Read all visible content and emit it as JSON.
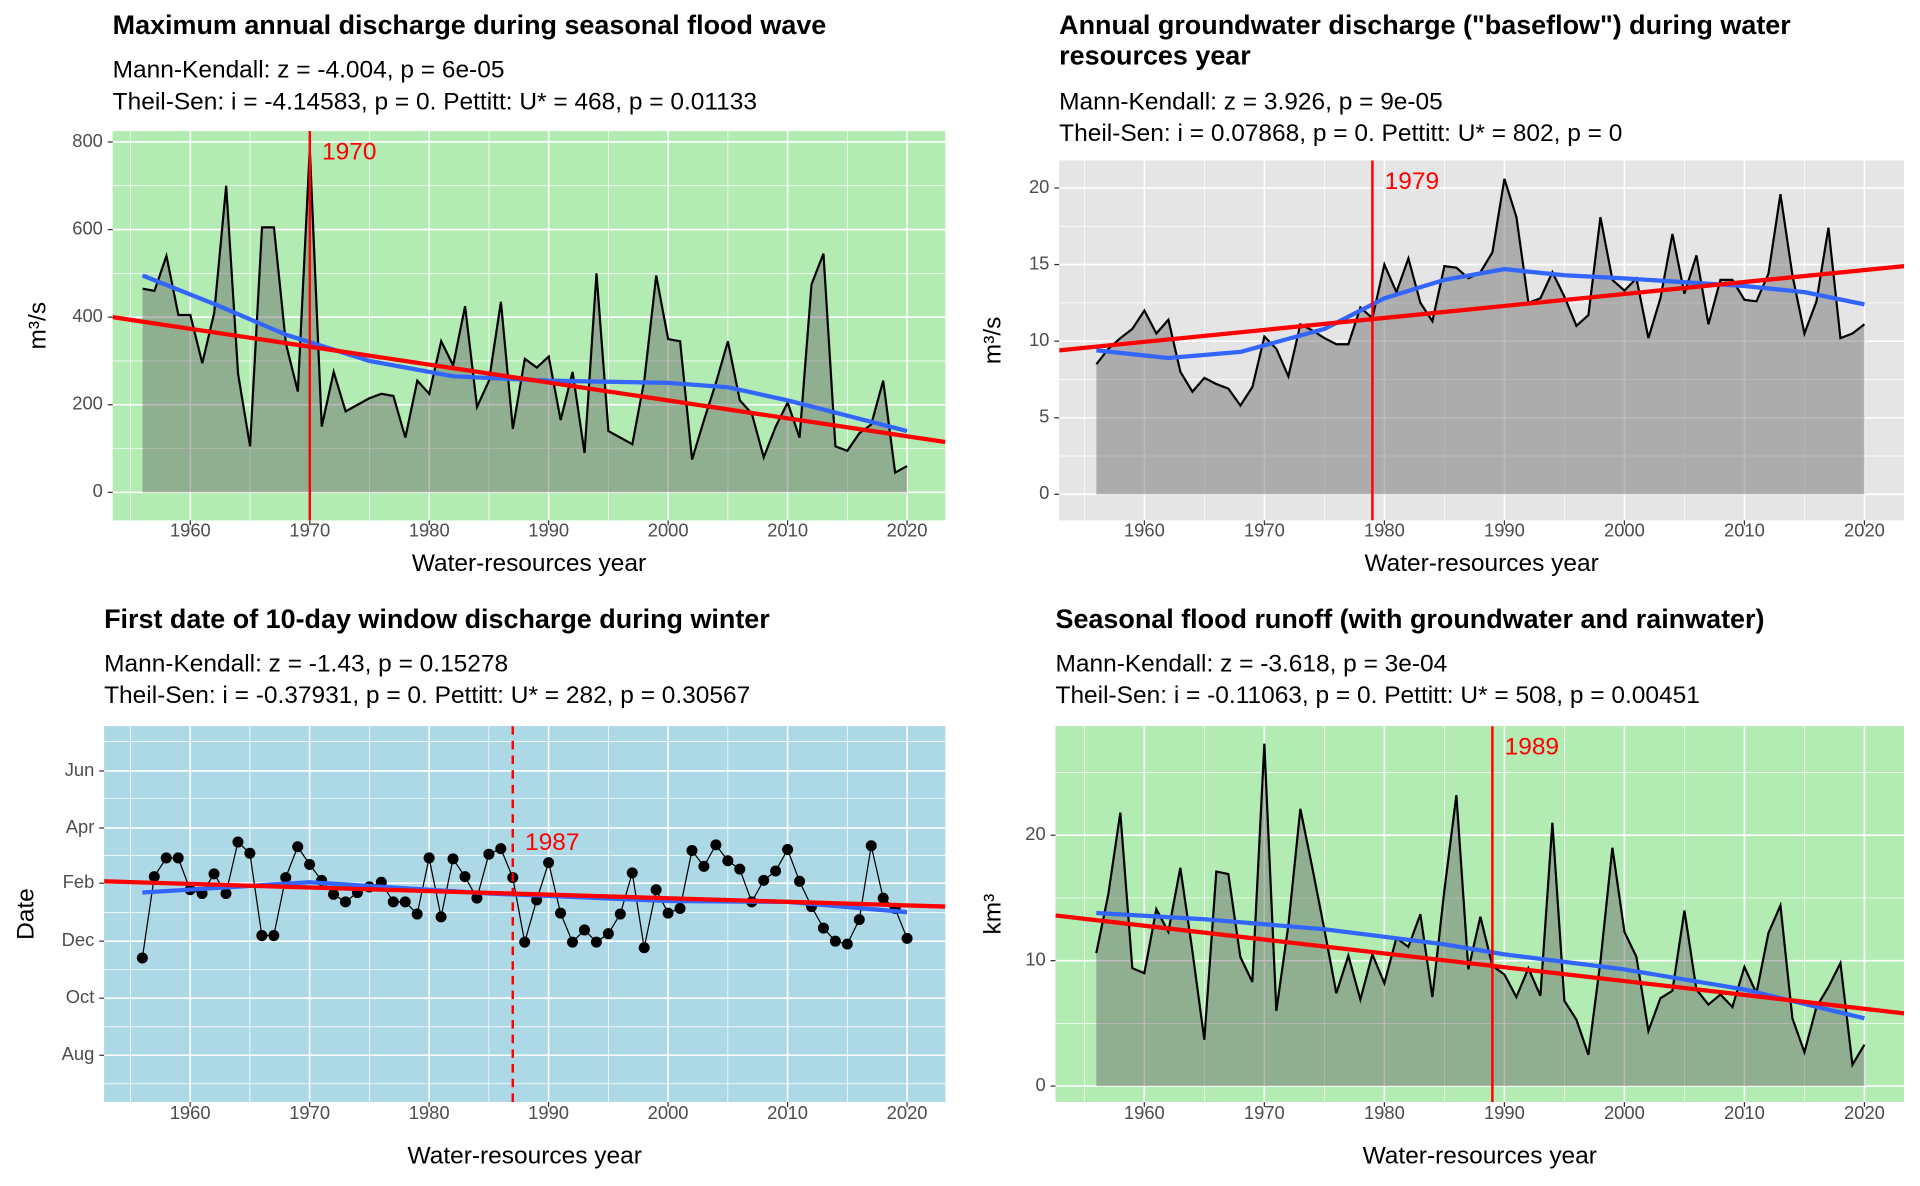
{
  "chart_data": [
    {
      "type": "area",
      "title": [
        "Maximum annual discharge during seasonal flood wave"
      ],
      "subtitle": [
        "Mann-Kendall: z = -4.004, p = 6e-05",
        "Theil-Sen: i = -4.14583, p = 0. Pettitt: U* = 468, p = 0.01133"
      ],
      "xlabel": "Water-resources year",
      "ylabel": "m³/s",
      "background": "#b3ecb3",
      "xlim": [
        1953.5,
        2023.2
      ],
      "xticks": [
        1960,
        1970,
        1980,
        1990,
        2000,
        2010,
        2020
      ],
      "ylim": [
        -64,
        825
      ],
      "yticks": [
        0,
        200,
        400,
        600,
        800
      ],
      "grid": true,
      "color": "#000000",
      "x": [
        1956,
        1957,
        1958,
        1959,
        1960,
        1961,
        1962,
        1963,
        1964,
        1965,
        1966,
        1967,
        1968,
        1969,
        1970,
        1971,
        1972,
        1973,
        1974,
        1975,
        1976,
        1977,
        1978,
        1979,
        1980,
        1981,
        1982,
        1983,
        1984,
        1985,
        1986,
        1987,
        1988,
        1989,
        1990,
        1991,
        1992,
        1993,
        1994,
        1995,
        1996,
        1997,
        1998,
        1999,
        2000,
        2001,
        2002,
        2003,
        2004,
        2005,
        2006,
        2007,
        2008,
        2009,
        2010,
        2011,
        2012,
        2013,
        2014,
        2015,
        2016,
        2017,
        2018,
        2019,
        2020
      ],
      "values": [
        465,
        460,
        540,
        405,
        405,
        295,
        410,
        700,
        270,
        105,
        605,
        605,
        340,
        230,
        785,
        150,
        275,
        185,
        200,
        215,
        225,
        220,
        125,
        255,
        225,
        345,
        290,
        425,
        195,
        255,
        435,
        145,
        305,
        285,
        310,
        165,
        275,
        90,
        500,
        140,
        125,
        110,
        255,
        495,
        350,
        345,
        75,
        165,
        250,
        345,
        210,
        180,
        80,
        150,
        205,
        125,
        475,
        545,
        105,
        95,
        135,
        155,
        255,
        45,
        60
      ],
      "trend": {
        "color": "#ff0000",
        "x": [
          1953.5,
          2023.2
        ],
        "values": [
          400,
          115
        ]
      },
      "smooth": {
        "color": "#3366ff",
        "x": [
          1956,
          1962,
          1968,
          1975,
          1982,
          1990,
          2000,
          2005,
          2010,
          2015,
          2020
        ],
        "values": [
          495,
          430,
          360,
          300,
          265,
          255,
          250,
          240,
          210,
          175,
          140
        ]
      },
      "changepoint": 1970,
      "changepoint_style": "solid"
    },
    {
      "type": "area",
      "title": [
        "Annual groundwater discharge (\"baseflow\") during water",
        "resources year"
      ],
      "subtitle": [
        "Mann-Kendall: z = 3.926, p = 9e-05",
        "Theil-Sen: i = 0.07868, p = 0. Pettitt: U* = 802, p = 0"
      ],
      "xlabel": "Water-resources year",
      "ylabel": "m³/s",
      "background": "#e5e5e5",
      "xlim": [
        1952.9,
        2023.3
      ],
      "xticks": [
        1960,
        1970,
        1980,
        1990,
        2000,
        2010,
        2020
      ],
      "ylim": [
        -1.7,
        21.8
      ],
      "yticks": [
        0,
        5,
        10,
        15,
        20
      ],
      "grid": true,
      "color": "#000000",
      "x": [
        1956,
        1957,
        1958,
        1959,
        1960,
        1961,
        1962,
        1963,
        1964,
        1965,
        1966,
        1967,
        1968,
        1969,
        1970,
        1971,
        1972,
        1973,
        1974,
        1975,
        1976,
        1977,
        1978,
        1979,
        1980,
        1981,
        1982,
        1983,
        1984,
        1985,
        1986,
        1987,
        1988,
        1989,
        1990,
        1991,
        1992,
        1993,
        1994,
        1995,
        1996,
        1997,
        1998,
        1999,
        2000,
        2001,
        2002,
        2003,
        2004,
        2005,
        2006,
        2007,
        2008,
        2009,
        2010,
        2011,
        2012,
        2013,
        2014,
        2015,
        2016,
        2017,
        2018,
        2019,
        2020
      ],
      "values": [
        8.5,
        9.5,
        10.2,
        10.8,
        12,
        10.5,
        11.4,
        8,
        6.7,
        7.6,
        7.2,
        6.9,
        5.8,
        7,
        10.3,
        9.5,
        7.7,
        11.1,
        10.7,
        10.2,
        9.8,
        9.8,
        12.2,
        11.5,
        15,
        13.2,
        15.4,
        12.5,
        11.3,
        14.9,
        14.8,
        14.1,
        14.5,
        15.8,
        20.6,
        18.1,
        12.5,
        12.8,
        14.5,
        12.9,
        11,
        11.7,
        18.1,
        14,
        13.3,
        14.1,
        10.2,
        12.8,
        17,
        13.1,
        15.6,
        11.1,
        14,
        14,
        12.7,
        12.6,
        14.4,
        19.6,
        14.3,
        10.5,
        12.6,
        17.4,
        10.2,
        10.5,
        11.1
      ],
      "trend": {
        "color": "#ff0000",
        "x": [
          1952.9,
          2023.3
        ],
        "values": [
          9.4,
          14.9
        ]
      },
      "smooth": {
        "color": "#3366ff",
        "x": [
          1956,
          1962,
          1968,
          1975,
          1980,
          1985,
          1990,
          1995,
          2000,
          2010,
          2015,
          2020
        ],
        "values": [
          9.4,
          8.9,
          9.3,
          10.8,
          12.8,
          14,
          14.7,
          14.3,
          14.1,
          13.6,
          13.2,
          12.4
        ]
      },
      "changepoint": 1979,
      "changepoint_style": "solid"
    },
    {
      "type": "line",
      "markers": true,
      "title": [
        "First date of 10-day window discharge during winter"
      ],
      "subtitle": [
        "Mann-Kendall: z = -1.43, p = 0.15278",
        "Theil-Sen: i = -0.37931, p = 0. Pettitt: U* = 282, p = 0.30567"
      ],
      "xlabel": "Water-resources year",
      "ylabel": "Date",
      "background": "#add8e6",
      "xlim": [
        1952.8,
        2023.2
      ],
      "xticks": [
        1960,
        1970,
        1980,
        1990,
        2000,
        2010,
        2020
      ],
      "ylim": [
        -50,
        352
      ],
      "yticks": [
        {
          "value": 0,
          "label": "Aug"
        },
        {
          "value": 61,
          "label": "Oct"
        },
        {
          "value": 122,
          "label": "Dec"
        },
        {
          "value": 184,
          "label": "Feb"
        },
        {
          "value": 243,
          "label": "Apr"
        },
        {
          "value": 304,
          "label": "Jun"
        }
      ],
      "grid": true,
      "color": "#000000",
      "x": [
        1956,
        1957,
        1958,
        1959,
        1960,
        1961,
        1962,
        1963,
        1964,
        1965,
        1966,
        1967,
        1968,
        1969,
        1970,
        1971,
        1972,
        1973,
        1974,
        1975,
        1976,
        1977,
        1978,
        1979,
        1980,
        1981,
        1982,
        1983,
        1984,
        1985,
        1986,
        1987,
        1988,
        1989,
        1990,
        1991,
        1992,
        1993,
        1994,
        1995,
        1996,
        1997,
        1998,
        1999,
        2000,
        2001,
        2002,
        2003,
        2004,
        2005,
        2006,
        2007,
        2008,
        2009,
        2010,
        2011,
        2012,
        2013,
        2014,
        2015,
        2016,
        2017,
        2018,
        2019,
        2020
      ],
      "values": [
        104,
        191,
        211,
        211,
        177,
        173,
        194,
        173,
        228,
        216,
        128,
        128,
        190,
        223,
        204,
        187,
        172,
        164,
        174,
        180,
        185,
        164,
        164,
        151,
        211,
        148,
        210,
        191,
        168,
        215,
        221,
        190,
        121,
        166,
        206,
        152,
        121,
        134,
        121,
        130,
        151,
        195,
        115,
        177,
        152,
        157,
        219,
        202,
        225,
        208,
        199,
        164,
        187,
        197,
        220,
        186,
        159,
        136,
        122,
        119,
        145,
        224,
        168,
        157,
        125
      ],
      "trend": {
        "color": "#ff0000",
        "x": [
          1952.8,
          2023.2
        ],
        "values": [
          186,
          159
        ]
      },
      "smooth": {
        "color": "#3366ff",
        "x": [
          1956,
          1970,
          1985,
          2000,
          2010,
          2020
        ],
        "values": [
          174,
          185,
          173,
          165,
          164,
          153
        ]
      },
      "changepoint": 1987,
      "changepoint_style": "dashed"
    },
    {
      "type": "area",
      "title": [
        "Seasonal flood runoff (with groundwater and rainwater)"
      ],
      "subtitle": [
        "Mann-Kendall: z = -3.618, p = 3e-04",
        "Theil-Sen: i = -0.11063, p = 0. Pettitt: U* = 508, p = 0.00451"
      ],
      "xlabel": "Water-resources year",
      "ylabel": "km³",
      "background": "#b3ecb3",
      "xlim": [
        1952.6,
        2023.3
      ],
      "xticks": [
        1960,
        1970,
        1980,
        1990,
        2000,
        2010,
        2020
      ],
      "ylim": [
        -1.27,
        28.7
      ],
      "yticks": [
        0,
        10,
        20
      ],
      "grid": true,
      "color": "#000000",
      "x": [
        1956,
        1957,
        1958,
        1959,
        1960,
        1961,
        1962,
        1963,
        1964,
        1965,
        1966,
        1967,
        1968,
        1969,
        1970,
        1971,
        1972,
        1973,
        1974,
        1975,
        1976,
        1977,
        1978,
        1979,
        1980,
        1981,
        1982,
        1983,
        1984,
        1985,
        1986,
        1987,
        1988,
        1989,
        1990,
        1991,
        1992,
        1993,
        1994,
        1995,
        1996,
        1997,
        1998,
        1999,
        2000,
        2001,
        2002,
        2003,
        2004,
        2005,
        2006,
        2007,
        2008,
        2009,
        2010,
        2011,
        2012,
        2013,
        2014,
        2015,
        2016,
        2017,
        2018,
        2019,
        2020
      ],
      "values": [
        10.6,
        15.3,
        21.8,
        9.4,
        9,
        14.1,
        12.3,
        17.4,
        10.8,
        3.7,
        17.1,
        16.9,
        10.3,
        8.3,
        27.3,
        6,
        12.8,
        22.1,
        17.4,
        12.5,
        7.4,
        10.4,
        6.9,
        10.5,
        8.2,
        11.8,
        11.1,
        13.7,
        7.1,
        15.6,
        23.2,
        9.3,
        13.5,
        9.6,
        8.9,
        7.1,
        9.4,
        7.2,
        21,
        6.8,
        5.3,
        2.5,
        9.9,
        19,
        12.3,
        10.3,
        4.4,
        7,
        7.6,
        14,
        7.7,
        6.5,
        7.3,
        6.3,
        9.5,
        7.4,
        12.2,
        14.4,
        5.4,
        2.7,
        6.3,
        7.9,
        9.8,
        1.7,
        3.3
      ],
      "trend": {
        "color": "#ff0000",
        "x": [
          1952.6,
          2023.3
        ],
        "values": [
          13.6,
          5.8
        ]
      },
      "smooth": {
        "color": "#3366ff",
        "x": [
          1956,
          1965,
          1975,
          1985,
          1990,
          2000,
          2010,
          2020
        ],
        "values": [
          13.8,
          13.3,
          12.5,
          11.3,
          10.5,
          9.3,
          7.7,
          5.4
        ]
      },
      "changepoint": 1989,
      "changepoint_style": "solid"
    }
  ]
}
